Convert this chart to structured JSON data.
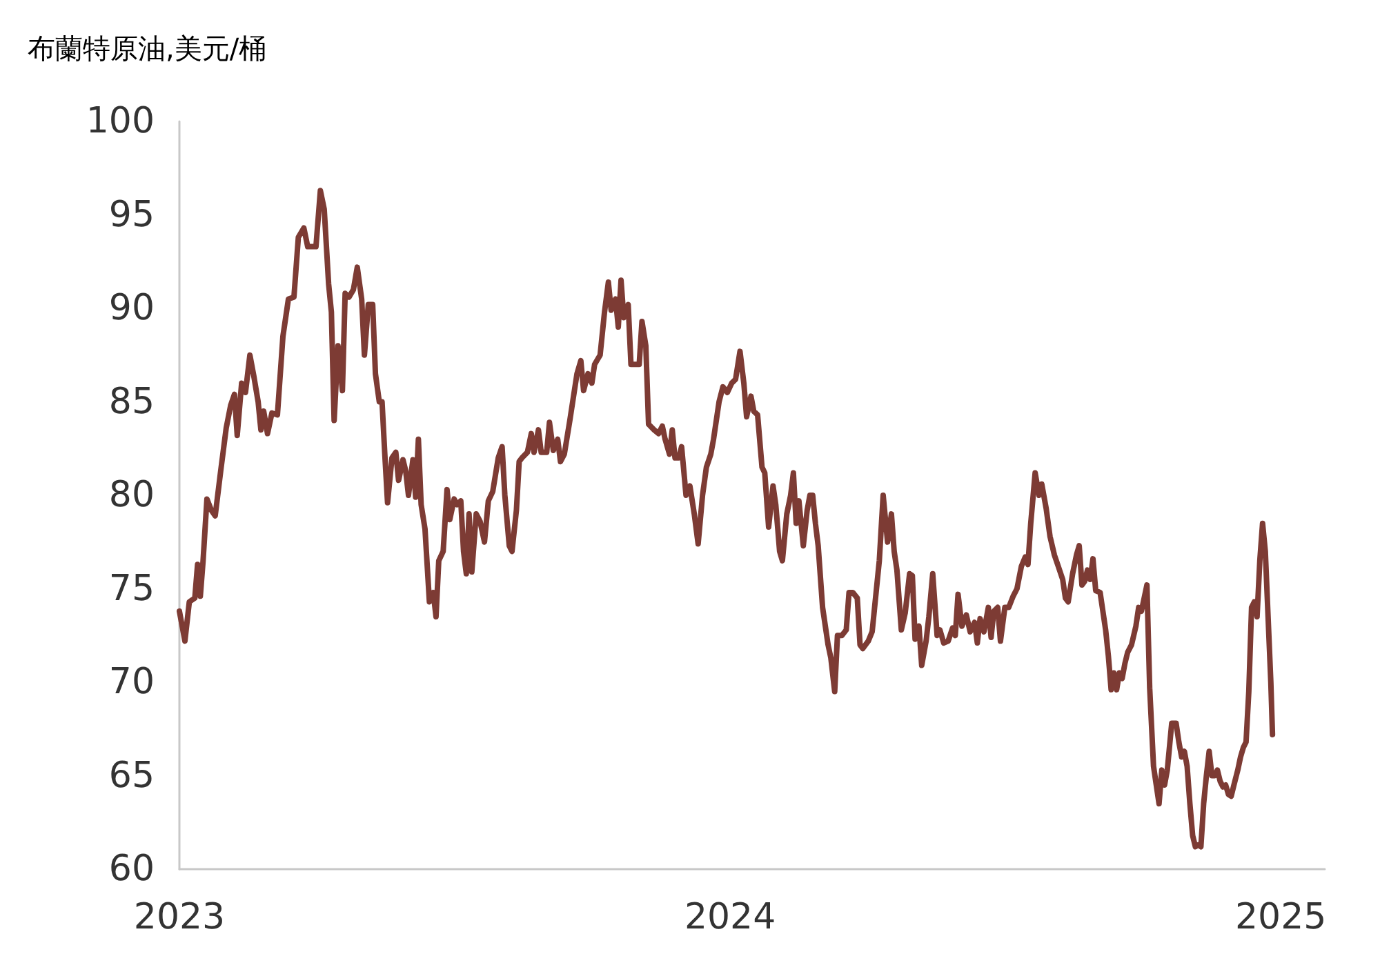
{
  "chart_data": {
    "type": "line",
    "title": "布蘭特原油,美元/桶",
    "grid": false,
    "marker": "none",
    "line_style": "solid",
    "xlim": [
      2023,
      2025.08
    ],
    "xticks": [
      2023,
      2024,
      2025
    ],
    "ylim": [
      60,
      100
    ],
    "yticks": [
      60,
      65,
      70,
      75,
      80,
      85,
      90,
      95,
      100
    ],
    "series": [
      {
        "color": "#7d3b34",
        "x": [
          2023.0,
          2023.01,
          2023.018,
          2023.028,
          2023.033,
          2023.038,
          2023.043,
          2023.05,
          2023.058,
          2023.065,
          2023.075,
          2023.085,
          2023.093,
          2023.1,
          2023.105,
          2023.113,
          2023.12,
          2023.128,
          2023.135,
          2023.143,
          2023.148,
          2023.153,
          2023.16,
          2023.168,
          2023.178,
          2023.188,
          2023.198,
          2023.208,
          2023.216,
          2023.226,
          2023.233,
          2023.248,
          2023.256,
          2023.263,
          2023.271,
          2023.276,
          2023.281,
          2023.288,
          2023.296,
          2023.301,
          2023.308,
          2023.316,
          2023.323,
          2023.331,
          2023.336,
          2023.343,
          2023.351,
          2023.356,
          2023.363,
          2023.368,
          2023.373,
          2023.378,
          2023.386,
          2023.393,
          2023.398,
          2023.406,
          2023.411,
          2023.416,
          2023.424,
          2023.429,
          2023.434,
          2023.439,
          2023.446,
          2023.454,
          2023.461,
          2023.466,
          2023.471,
          2023.479,
          2023.486,
          2023.491,
          2023.499,
          2023.504,
          2023.511,
          2023.516,
          2023.521,
          2023.526,
          2023.531,
          2023.539,
          2023.546,
          2023.554,
          2023.561,
          2023.569,
          2023.579,
          2023.586,
          2023.591,
          2023.599,
          2023.604,
          2023.612,
          2023.617,
          2023.622,
          2023.632,
          2023.639,
          2023.644,
          2023.652,
          2023.657,
          2023.667,
          2023.672,
          2023.679,
          2023.687,
          2023.692,
          2023.699,
          2023.709,
          2023.722,
          2023.729,
          2023.734,
          2023.742,
          2023.749,
          2023.754,
          2023.764,
          2023.772,
          2023.779,
          2023.784,
          2023.792,
          2023.797,
          2023.802,
          2023.807,
          2023.815,
          2023.82,
          2023.827,
          2023.835,
          2023.84,
          2023.847,
          2023.852,
          2023.862,
          2023.87,
          2023.877,
          2023.882,
          2023.89,
          2023.895,
          2023.9,
          2023.907,
          2023.912,
          2023.92,
          2023.927,
          2023.935,
          2023.942,
          2023.95,
          2023.957,
          2023.965,
          2023.97,
          2023.98,
          2023.987,
          2023.995,
          2024.003,
          2024.01,
          2024.018,
          2024.025,
          2024.03,
          2024.038,
          2024.043,
          2024.05,
          2024.058,
          2024.063,
          2024.07,
          2024.078,
          2024.083,
          2024.09,
          2024.095,
          2024.103,
          2024.11,
          2024.115,
          2024.12,
          2024.125,
          2024.133,
          2024.14,
          2024.145,
          2024.15,
          2024.155,
          2024.16,
          2024.168,
          2024.178,
          2024.183,
          2024.19,
          2024.195,
          2024.203,
          2024.211,
          2024.216,
          2024.223,
          2024.231,
          2024.236,
          2024.241,
          2024.251,
          2024.258,
          2024.271,
          2024.278,
          2024.286,
          2024.293,
          2024.298,
          2024.303,
          2024.311,
          2024.318,
          2024.326,
          2024.331,
          2024.336,
          2024.343,
          2024.348,
          2024.356,
          2024.361,
          2024.368,
          2024.376,
          2024.381,
          2024.388,
          2024.396,
          2024.404,
          2024.409,
          2024.414,
          2024.421,
          2024.429,
          2024.436,
          2024.444,
          2024.449,
          2024.454,
          2024.461,
          2024.469,
          2024.474,
          2024.479,
          2024.486,
          2024.491,
          2024.499,
          2024.506,
          2024.514,
          2024.521,
          2024.529,
          2024.536,
          2024.541,
          2024.546,
          2024.554,
          2024.561,
          2024.566,
          2024.574,
          2024.581,
          2024.589,
          2024.596,
          2024.604,
          2024.609,
          2024.614,
          2024.622,
          2024.629,
          2024.634,
          2024.639,
          2024.644,
          2024.649,
          2024.654,
          2024.659,
          2024.664,
          2024.672,
          2024.677,
          2024.682,
          2024.687,
          2024.692,
          2024.697,
          2024.702,
          2024.707,
          2024.712,
          2024.717,
          2024.722,
          2024.729,
          2024.737,
          2024.742,
          2024.747,
          2024.752,
          2024.757,
          2024.762,
          2024.769,
          2024.774,
          2024.779,
          2024.784,
          2024.789,
          2024.794,
          2024.802,
          2024.81,
          2024.815,
          2024.82,
          2024.825,
          2024.83,
          2024.835,
          2024.84,
          2024.845,
          2024.85,
          2024.855,
          2024.86,
          2024.865,
          2024.87,
          2024.875,
          2024.88,
          2024.885,
          2024.89,
          2024.895,
          2024.9,
          2024.905,
          2024.91,
          2024.915,
          2024.922,
          2024.927,
          2024.932,
          2024.937,
          2024.942,
          2024.947,
          2024.952,
          2024.957,
          2024.962,
          2024.967,
          2024.972,
          2024.977,
          2024.982,
          2024.985
        ],
        "values": [
          73.8,
          72.2,
          74.3,
          74.5,
          76.3,
          74.6,
          76.5,
          79.8,
          79.2,
          78.9,
          81.3,
          83.6,
          84.8,
          85.4,
          83.2,
          86.0,
          85.5,
          87.5,
          86.4,
          85.0,
          83.5,
          84.5,
          83.3,
          84.4,
          84.3,
          88.5,
          90.5,
          90.6,
          93.8,
          94.3,
          93.3,
          93.3,
          96.3,
          95.3,
          91.3,
          89.8,
          84.0,
          88.0,
          85.6,
          90.8,
          90.6,
          91.0,
          92.2,
          90.5,
          87.5,
          90.2,
          90.2,
          86.5,
          85.0,
          85.0,
          82.2,
          79.6,
          82.0,
          82.3,
          80.8,
          81.9,
          81.3,
          80.0,
          81.9,
          79.9,
          83.0,
          79.5,
          78.2,
          74.3,
          74.8,
          73.5,
          76.5,
          77.0,
          80.3,
          78.7,
          79.8,
          79.5,
          79.7,
          77.0,
          75.8,
          79.0,
          75.9,
          79.0,
          78.6,
          77.5,
          79.7,
          80.2,
          82.0,
          82.6,
          80.0,
          77.3,
          77.0,
          79.2,
          81.8,
          82.0,
          82.3,
          83.3,
          82.3,
          83.5,
          82.3,
          82.3,
          83.9,
          82.4,
          83.0,
          81.8,
          82.2,
          84.0,
          86.5,
          87.2,
          85.6,
          86.5,
          86.0,
          87.0,
          87.5,
          89.8,
          91.4,
          89.9,
          90.5,
          89.0,
          91.5,
          89.5,
          90.2,
          87.0,
          87.0,
          87.0,
          89.3,
          88.0,
          83.8,
          83.5,
          83.3,
          83.7,
          83.0,
          82.2,
          83.5,
          82.0,
          82.0,
          82.6,
          80.0,
          80.5,
          79.0,
          77.4,
          80.0,
          81.5,
          82.2,
          83.0,
          85.0,
          85.8,
          85.5,
          86.0,
          86.2,
          87.7,
          86.0,
          84.2,
          85.3,
          84.5,
          84.3,
          81.5,
          81.2,
          78.3,
          80.5,
          79.5,
          77.0,
          76.5,
          79.0,
          80.0,
          81.2,
          78.5,
          79.7,
          77.3,
          79.2,
          80.0,
          80.0,
          78.5,
          77.3,
          74.0,
          72.0,
          71.3,
          69.5,
          72.5,
          72.5,
          72.8,
          74.8,
          74.8,
          74.5,
          72.0,
          71.8,
          72.2,
          72.7,
          76.5,
          80.0,
          77.5,
          79.0,
          77.0,
          76.0,
          72.8,
          73.7,
          75.8,
          75.7,
          72.3,
          73.0,
          70.9,
          72.2,
          73.5,
          75.8,
          72.5,
          72.8,
          72.1,
          72.2,
          72.9,
          72.5,
          74.7,
          73.0,
          73.6,
          72.7,
          73.2,
          72.1,
          73.4,
          72.7,
          74.0,
          72.4,
          73.8,
          74.0,
          72.2,
          74.0,
          74.0,
          74.6,
          75.0,
          76.2,
          76.7,
          76.3,
          78.5,
          81.2,
          80.0,
          80.6,
          79.3,
          77.8,
          76.8,
          76.2,
          75.5,
          74.5,
          74.3,
          75.8,
          76.8,
          77.3,
          75.2,
          75.4,
          76.0,
          75.5,
          76.6,
          74.9,
          74.8,
          73.8,
          72.8,
          71.4,
          69.6,
          70.5,
          69.6,
          70.5,
          70.2,
          71.0,
          71.6,
          72.0,
          73.0,
          74.0,
          73.8,
          74.5,
          75.2,
          69.7,
          65.5,
          64.5,
          63.5,
          65.3,
          64.5,
          65.3,
          67.8,
          67.8,
          66.8,
          66.0,
          66.3,
          65.5,
          63.5,
          61.8,
          61.2,
          61.3,
          61.2,
          63.5,
          65.0,
          66.3,
          65.0,
          65.0,
          65.3,
          64.7,
          64.4,
          64.5,
          64.0,
          63.9,
          64.5,
          65.3,
          66.0,
          66.5,
          66.8,
          69.5,
          74.0,
          74.3,
          73.5,
          76.5,
          78.5,
          77.0,
          73.5,
          70.0,
          67.2
        ]
      }
    ]
  }
}
